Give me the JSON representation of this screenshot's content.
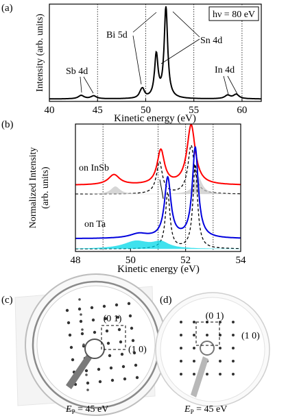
{
  "chart_data": [
    {
      "panel_label": "(a)",
      "type": "line",
      "xlabel": "Kinetic energy (eV)",
      "ylabel": "Intensity (arb. units)",
      "xlim": [
        40,
        62
      ],
      "xticks": [
        40,
        45,
        50,
        55,
        60
      ],
      "ylim": [
        0,
        1
      ],
      "gridlines_x": [
        45,
        50,
        55,
        60
      ],
      "photon_energy_box": "hν = 80 eV",
      "annotations": [
        {
          "text": "Sb 4d",
          "x": 44.0
        },
        {
          "text": "Bi 5d",
          "x": 50.0
        },
        {
          "text": "Sn 4d",
          "x": 52.0
        },
        {
          "text": "In 4d",
          "x": 59.0
        }
      ],
      "series": [
        {
          "color": "#000000",
          "peaks": [
            {
              "x": 43.3,
              "h": 0.035,
              "w": 0.35
            },
            {
              "x": 44.6,
              "h": 0.03,
              "w": 0.35
            },
            {
              "x": 49.5,
              "h": 0.045,
              "w": 0.25
            },
            {
              "x": 49.7,
              "h": 0.07,
              "w": 0.22
            },
            {
              "x": 51.1,
              "h": 0.44,
              "w": 0.22
            },
            {
              "x": 52.1,
              "h": 0.93,
              "w": 0.22
            },
            {
              "x": 58.5,
              "h": 0.035,
              "w": 0.35
            },
            {
              "x": 59.4,
              "h": 0.045,
              "w": 0.35
            }
          ],
          "baseline": 0.025
        }
      ]
    },
    {
      "panel_label": "(b)",
      "type": "line",
      "xlabel": "Kinetic energy (eV)",
      "ylabel": "Normalized Intensity (arb. units)",
      "xlim": [
        48,
        54
      ],
      "xticks": [
        48,
        50,
        52,
        54
      ],
      "ylim": [
        0,
        1
      ],
      "gridlines_x": [
        49,
        51,
        52,
        53
      ],
      "series": [
        {
          "name": "on InSb",
          "color": "#ff0000",
          "offset": 0.52,
          "peaks": [
            {
              "x": 49.4,
              "h": 0.08,
              "w": 0.25
            },
            {
              "x": 51.1,
              "h": 0.27,
              "w": 0.16
            },
            {
              "x": 52.2,
              "h": 0.47,
              "w": 0.18
            }
          ]
        },
        {
          "color": "#000000",
          "dashed": true,
          "offset": 0.45,
          "peaks": [
            {
              "x": 51.05,
              "h": 0.25,
              "w": 0.13
            },
            {
              "x": 52.2,
              "h": 0.38,
              "w": 0.14
            }
          ]
        },
        {
          "color": "#c8c8c8",
          "fill": true,
          "offset": 0.45,
          "peaks": [
            {
              "x": 49.45,
              "h": 0.06,
              "w": 0.2
            },
            {
              "x": 52.45,
              "h": 0.14,
              "w": 0.18
            }
          ]
        },
        {
          "name": "on Ta",
          "color": "#0000dd",
          "offset": 0.1,
          "peaks": [
            {
              "x": 50.3,
              "h": 0.035,
              "w": 0.4
            },
            {
              "x": 51.35,
              "h": 0.47,
              "w": 0.14
            },
            {
              "x": 52.35,
              "h": 0.71,
              "w": 0.13
            }
          ]
        },
        {
          "color": "#000000",
          "dashed": true,
          "offset": 0.02,
          "peaks": [
            {
              "x": 51.35,
              "h": 0.44,
              "w": 0.1
            },
            {
              "x": 52.35,
              "h": 0.66,
              "w": 0.1
            }
          ]
        },
        {
          "color": "#00d8e8",
          "fill": true,
          "offset": 0.02,
          "peaks": [
            {
              "x": 50.2,
              "h": 0.06,
              "w": 0.55
            },
            {
              "x": 51.1,
              "h": 0.05,
              "w": 0.35
            }
          ]
        }
      ]
    }
  ],
  "leed": [
    {
      "panel_label": "(c)",
      "spot_a": "(0 1)",
      "spot_b": "(1 0)",
      "caption_symbol": "E",
      "caption_subscript": "P",
      "caption_value": " = 45 eV"
    },
    {
      "panel_label": "(d)",
      "spot_a": "(0 1)",
      "spot_b": "(1 0)",
      "caption_symbol": "E",
      "caption_subscript": "P",
      "caption_value": " = 45 eV"
    }
  ]
}
